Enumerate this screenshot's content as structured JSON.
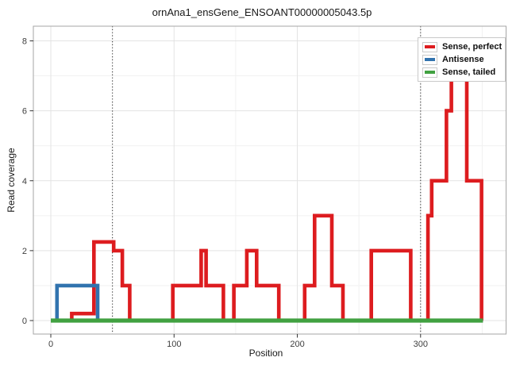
{
  "chart_data": {
    "type": "line",
    "subtype": "step-coverage",
    "title": "ornAna1_ensGene_ENSOANT00000005043.5p",
    "xlabel": "Position",
    "ylabel": "Read coverage",
    "xlim": [
      0,
      350
    ],
    "ylim": [
      0,
      8
    ],
    "xticks": [
      0,
      100,
      200,
      300
    ],
    "yticks": [
      0,
      2,
      4,
      6,
      8
    ],
    "x_minor_gridlines": [
      50,
      150,
      250,
      350
    ],
    "y_minor_gridlines": [
      1,
      3,
      5,
      7
    ],
    "grid": "on",
    "legend_position": "top-right-inside",
    "guide_vlines": {
      "positions": [
        50,
        300
      ],
      "style": "dotted",
      "color": "#3a3a3a"
    },
    "series": [
      {
        "name": "Sense, perfect",
        "color": "#dd1c1f",
        "end": 350.6,
        "steps": [
          [
            0,
            0
          ],
          [
            17,
            0.2
          ],
          [
            35,
            2.25
          ],
          [
            51,
            2
          ],
          [
            58,
            1
          ],
          [
            64,
            0
          ],
          [
            99,
            1
          ],
          [
            122,
            2
          ],
          [
            126,
            1
          ],
          [
            140,
            0
          ],
          [
            148.5,
            1
          ],
          [
            159,
            2
          ],
          [
            167,
            1
          ],
          [
            185,
            0
          ],
          [
            206,
            1
          ],
          [
            214,
            3
          ],
          [
            228,
            1
          ],
          [
            237,
            0
          ],
          [
            260,
            2
          ],
          [
            292,
            0
          ],
          [
            306,
            3
          ],
          [
            309,
            4
          ],
          [
            321,
            6
          ],
          [
            325,
            8
          ],
          [
            337.5,
            4
          ],
          [
            349.5,
            0
          ]
        ]
      },
      {
        "name": "Antisense",
        "color": "#3173ae",
        "end": 350.6,
        "steps": [
          [
            0,
            0
          ],
          [
            5,
            1
          ],
          [
            38,
            0
          ]
        ]
      },
      {
        "name": "Sense, tailed",
        "color": "#41a141",
        "end": 350.6,
        "steps": [
          [
            0,
            0
          ]
        ]
      }
    ],
    "legend": {
      "items": [
        {
          "label": "Sense, perfect",
          "color": "#dd1c1f"
        },
        {
          "label": "Antisense",
          "color": "#3173ae"
        },
        {
          "label": "Sense, tailed",
          "color": "#41a141"
        }
      ]
    },
    "style_colors": {
      "grid_major": "#e3e3e3",
      "grid_minor": "#f1f1f1",
      "panel_border": "#a6a6a6",
      "tick": "#333333",
      "tick_label": "#3d3d3d"
    }
  }
}
